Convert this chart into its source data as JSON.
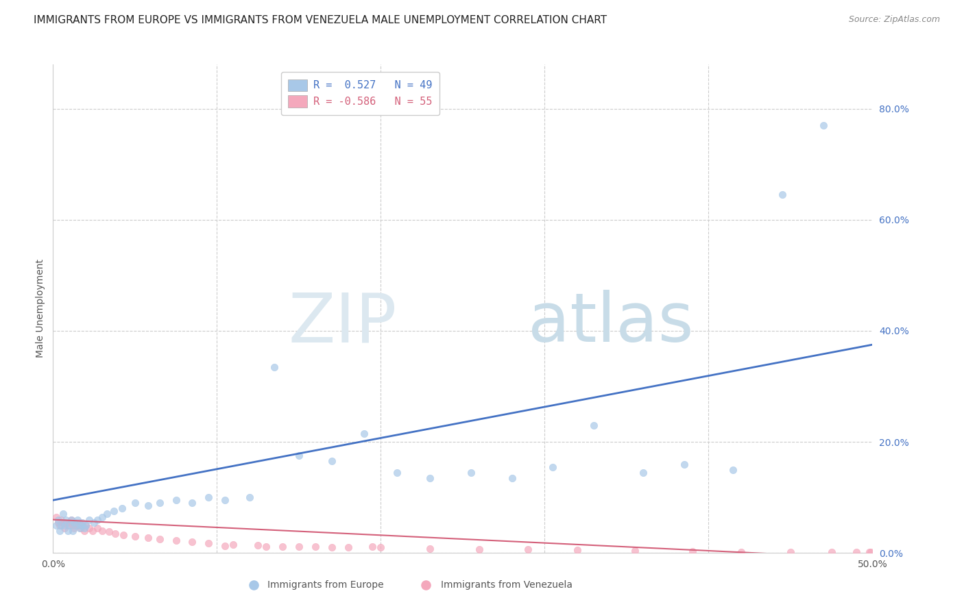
{
  "title": "IMMIGRANTS FROM EUROPE VS IMMIGRANTS FROM VENEZUELA MALE UNEMPLOYMENT CORRELATION CHART",
  "source": "Source: ZipAtlas.com",
  "ylabel": "Male Unemployment",
  "xlim": [
    0.0,
    0.5
  ],
  "ylim": [
    0.0,
    0.88
  ],
  "yticks_right": [
    0.0,
    0.2,
    0.4,
    0.6,
    0.8
  ],
  "yticklabels_right": [
    "0.0%",
    "20.0%",
    "40.0%",
    "60.0%",
    "80.0%"
  ],
  "europe_color": "#a8c8e8",
  "venezuela_color": "#f4a8bc",
  "europe_R": 0.527,
  "europe_N": 49,
  "venezuela_R": -0.586,
  "venezuela_N": 55,
  "europe_line_color": "#4472c4",
  "venezuela_line_color": "#d4607a",
  "europe_scatter_x": [
    0.002,
    0.003,
    0.004,
    0.005,
    0.006,
    0.007,
    0.008,
    0.009,
    0.01,
    0.011,
    0.012,
    0.013,
    0.014,
    0.015,
    0.016,
    0.017,
    0.018,
    0.019,
    0.02,
    0.022,
    0.025,
    0.027,
    0.03,
    0.033,
    0.037,
    0.042,
    0.05,
    0.058,
    0.065,
    0.075,
    0.085,
    0.095,
    0.105,
    0.12,
    0.135,
    0.15,
    0.17,
    0.19,
    0.21,
    0.23,
    0.255,
    0.28,
    0.305,
    0.33,
    0.36,
    0.385,
    0.415,
    0.445,
    0.47
  ],
  "europe_scatter_y": [
    0.05,
    0.06,
    0.04,
    0.05,
    0.07,
    0.05,
    0.06,
    0.04,
    0.05,
    0.06,
    0.04,
    0.055,
    0.05,
    0.06,
    0.045,
    0.05,
    0.055,
    0.045,
    0.05,
    0.06,
    0.055,
    0.06,
    0.065,
    0.07,
    0.075,
    0.08,
    0.09,
    0.085,
    0.09,
    0.095,
    0.09,
    0.1,
    0.095,
    0.1,
    0.335,
    0.175,
    0.165,
    0.215,
    0.145,
    0.135,
    0.145,
    0.135,
    0.155,
    0.23,
    0.145,
    0.16,
    0.15,
    0.645,
    0.77
  ],
  "venezuela_scatter_x": [
    0.002,
    0.003,
    0.004,
    0.005,
    0.006,
    0.007,
    0.008,
    0.009,
    0.01,
    0.011,
    0.012,
    0.013,
    0.014,
    0.015,
    0.016,
    0.017,
    0.018,
    0.019,
    0.02,
    0.022,
    0.024,
    0.027,
    0.03,
    0.034,
    0.038,
    0.043,
    0.05,
    0.058,
    0.065,
    0.075,
    0.085,
    0.095,
    0.11,
    0.125,
    0.14,
    0.16,
    0.18,
    0.2,
    0.23,
    0.26,
    0.29,
    0.32,
    0.355,
    0.39,
    0.42,
    0.45,
    0.475,
    0.49,
    0.498,
    0.499,
    0.105,
    0.13,
    0.15,
    0.17,
    0.195
  ],
  "venezuela_scatter_y": [
    0.065,
    0.055,
    0.05,
    0.06,
    0.055,
    0.045,
    0.055,
    0.05,
    0.055,
    0.06,
    0.05,
    0.045,
    0.055,
    0.05,
    0.055,
    0.045,
    0.05,
    0.04,
    0.05,
    0.045,
    0.04,
    0.045,
    0.04,
    0.038,
    0.035,
    0.032,
    0.03,
    0.028,
    0.025,
    0.022,
    0.02,
    0.018,
    0.015,
    0.014,
    0.012,
    0.012,
    0.01,
    0.01,
    0.008,
    0.007,
    0.006,
    0.005,
    0.004,
    0.003,
    0.002,
    0.002,
    0.001,
    0.001,
    0.001,
    0.001,
    0.013,
    0.012,
    0.011,
    0.01,
    0.011
  ],
  "europe_line_x": [
    0.0,
    0.5
  ],
  "europe_line_y": [
    0.095,
    0.375
  ],
  "venezuela_line_x": [
    0.0,
    0.5
  ],
  "venezuela_line_y": [
    0.06,
    -0.01
  ],
  "watermark_zip": "ZIP",
  "watermark_atlas": "atlas",
  "background_color": "#ffffff",
  "grid_color": "#cccccc",
  "title_fontsize": 11,
  "axis_label_fontsize": 10,
  "tick_fontsize": 10,
  "right_tick_color": "#4472c4",
  "scatter_size": 55
}
